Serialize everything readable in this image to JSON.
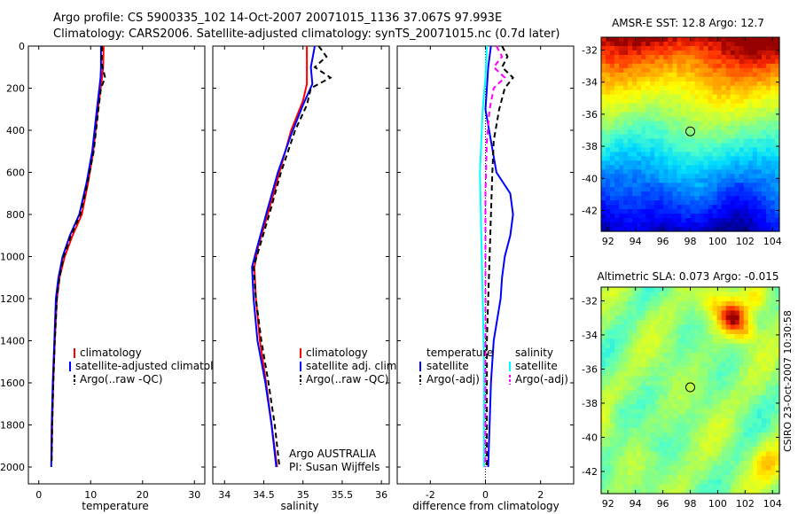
{
  "header": {
    "line1": "Argo profile: CS 5900335_102 14-Oct-2007 20071015_1136 37.067S 97.993E",
    "line2": "Climatology: CARS2006. Satellite-adjusted climatology: synTS_20071015.nc (0.7d later)"
  },
  "footer_credit": "CSIRO 23-Oct-2007 10:30:58",
  "colors": {
    "red": "#ff0000",
    "blue": "#0000ff",
    "black": "#000000",
    "cyan": "#00ffff",
    "magenta": "#ff00ff"
  },
  "chart_data": [
    {
      "type": "line",
      "id": "temperature",
      "xlabel": "temperature",
      "xlim": [
        -2,
        32
      ],
      "xticks": [
        0,
        10,
        20,
        30
      ],
      "ylim": [
        0,
        2080
      ],
      "yticks": [
        0,
        200,
        400,
        600,
        800,
        1000,
        1200,
        1400,
        1600,
        1800,
        2000
      ],
      "y_reversed": true,
      "legend": [
        "climatology",
        "satellite-adjusted climatology",
        "Argo(..raw -QC)"
      ],
      "series": [
        {
          "name": "climatology",
          "color": "red",
          "dash": false,
          "points": [
            [
              12.5,
              0
            ],
            [
              12.4,
              100
            ],
            [
              12.2,
              150
            ],
            [
              11.4,
              300
            ],
            [
              10.5,
              500
            ],
            [
              9.5,
              650
            ],
            [
              8.3,
              800
            ],
            [
              6.5,
              900
            ],
            [
              5.0,
              1000
            ],
            [
              4.0,
              1100
            ],
            [
              3.5,
              1200
            ],
            [
              3.1,
              1400
            ],
            [
              2.8,
              1600
            ],
            [
              2.6,
              1800
            ],
            [
              2.5,
              1950
            ]
          ]
        },
        {
          "name": "satellite-adjusted climatology",
          "color": "blue",
          "dash": false,
          "points": [
            [
              12.0,
              0
            ],
            [
              12.0,
              100
            ],
            [
              11.9,
              150
            ],
            [
              11.2,
              300
            ],
            [
              10.3,
              500
            ],
            [
              9.2,
              650
            ],
            [
              7.8,
              800
            ],
            [
              6.0,
              900
            ],
            [
              4.6,
              1000
            ],
            [
              3.8,
              1100
            ],
            [
              3.3,
              1200
            ],
            [
              3.0,
              1400
            ],
            [
              2.7,
              1600
            ],
            [
              2.5,
              1800
            ],
            [
              2.4,
              2000
            ]
          ]
        },
        {
          "name": "Argo(..raw -QC)",
          "color": "black",
          "dash": true,
          "points": [
            [
              12.2,
              0
            ],
            [
              12.1,
              80
            ],
            [
              12.8,
              150
            ],
            [
              12.0,
              200
            ],
            [
              11.5,
              300
            ],
            [
              10.6,
              500
            ],
            [
              9.4,
              650
            ],
            [
              8.0,
              800
            ],
            [
              6.2,
              900
            ],
            [
              4.8,
              1000
            ],
            [
              4.0,
              1100
            ],
            [
              3.5,
              1200
            ],
            [
              3.1,
              1400
            ],
            [
              2.8,
              1600
            ],
            [
              2.6,
              1800
            ],
            [
              2.5,
              1980
            ]
          ]
        }
      ]
    },
    {
      "type": "line",
      "id": "salinity",
      "xlabel": "salinity",
      "xlim": [
        33.85,
        36.1
      ],
      "xticks": [
        34,
        34.5,
        35,
        35.5,
        36
      ],
      "ylim": [
        0,
        2080
      ],
      "y_reversed": true,
      "legend": [
        "climatology",
        "satellite adj. clim.",
        "Argo(..raw -QC)"
      ],
      "annotation": [
        "Argo AUSTRALIA",
        "PI: Susan Wijffels"
      ],
      "series": [
        {
          "name": "climatology",
          "color": "red",
          "dash": false,
          "points": [
            [
              35.05,
              0
            ],
            [
              35.05,
              120
            ],
            [
              35.05,
              180
            ],
            [
              35.0,
              260
            ],
            [
              34.85,
              400
            ],
            [
              34.7,
              600
            ],
            [
              34.55,
              800
            ],
            [
              34.43,
              950
            ],
            [
              34.38,
              1050
            ],
            [
              34.4,
              1200
            ],
            [
              34.45,
              1400
            ],
            [
              34.53,
              1600
            ],
            [
              34.6,
              1800
            ],
            [
              34.67,
              2000
            ]
          ]
        },
        {
          "name": "satellite adj. clim.",
          "color": "blue",
          "dash": false,
          "points": [
            [
              35.15,
              0
            ],
            [
              35.1,
              100
            ],
            [
              35.12,
              180
            ],
            [
              35.0,
              280
            ],
            [
              34.85,
              420
            ],
            [
              34.68,
              600
            ],
            [
              34.53,
              800
            ],
            [
              34.42,
              950
            ],
            [
              34.35,
              1050
            ],
            [
              34.37,
              1200
            ],
            [
              34.42,
              1400
            ],
            [
              34.52,
              1600
            ],
            [
              34.6,
              1800
            ],
            [
              34.66,
              2000
            ]
          ]
        },
        {
          "name": "Argo(..raw -QC)",
          "color": "black",
          "dash": true,
          "points": [
            [
              35.2,
              0
            ],
            [
              35.3,
              50
            ],
            [
              35.15,
              100
            ],
            [
              35.35,
              150
            ],
            [
              35.1,
              200
            ],
            [
              35.05,
              280
            ],
            [
              34.9,
              400
            ],
            [
              34.72,
              600
            ],
            [
              34.57,
              800
            ],
            [
              34.45,
              950
            ],
            [
              34.37,
              1050
            ],
            [
              34.4,
              1200
            ],
            [
              34.47,
              1400
            ],
            [
              34.56,
              1600
            ],
            [
              34.64,
              1800
            ],
            [
              34.7,
              2000
            ]
          ]
        }
      ]
    },
    {
      "type": "line",
      "id": "difference",
      "xlabel": "difference from climatology",
      "xlim": [
        -3.2,
        3.2
      ],
      "xticks": [
        -2,
        0,
        2
      ],
      "ylim": [
        0,
        2080
      ],
      "y_reversed": true,
      "legend_temperature_heading": "temperature",
      "legend_salinity_heading": "salinity",
      "legend": [
        "satellite",
        "Argo(-adj)",
        "satellite",
        "Argo(-adj)"
      ],
      "series": [
        {
          "name": "temperature satellite",
          "color": "blue",
          "dash": false,
          "points": [
            [
              0.2,
              0
            ],
            [
              0.1,
              100
            ],
            [
              0.05,
              200
            ],
            [
              0.0,
              300
            ],
            [
              0.2,
              450
            ],
            [
              0.4,
              600
            ],
            [
              0.9,
              700
            ],
            [
              1.0,
              800
            ],
            [
              0.9,
              900
            ],
            [
              0.7,
              1000
            ],
            [
              0.6,
              1100
            ],
            [
              0.55,
              1200
            ],
            [
              0.3,
              1400
            ],
            [
              0.2,
              1600
            ],
            [
              0.15,
              1800
            ],
            [
              0.1,
              2000
            ]
          ]
        },
        {
          "name": "temperature Argo(-adj)",
          "color": "black",
          "dash": true,
          "points": [
            [
              0.6,
              0
            ],
            [
              0.8,
              50
            ],
            [
              0.6,
              100
            ],
            [
              1.0,
              150
            ],
            [
              0.7,
              200
            ],
            [
              0.5,
              300
            ],
            [
              0.3,
              450
            ],
            [
              0.25,
              600
            ],
            [
              0.2,
              800
            ],
            [
              0.15,
              1000
            ],
            [
              0.1,
              1200
            ],
            [
              0.05,
              1400
            ],
            [
              0.05,
              1600
            ],
            [
              0.05,
              1800
            ],
            [
              0.05,
              2000
            ]
          ]
        },
        {
          "name": "salinity satellite",
          "color": "cyan",
          "dash": false,
          "points": [
            [
              0.05,
              0
            ],
            [
              0.0,
              150
            ],
            [
              -0.1,
              300
            ],
            [
              -0.2,
              600
            ],
            [
              -0.15,
              900
            ],
            [
              -0.1,
              1200
            ],
            [
              -0.05,
              1500
            ],
            [
              -0.05,
              1800
            ],
            [
              -0.05,
              2000
            ]
          ]
        },
        {
          "name": "salinity Argo(-adj)",
          "color": "magenta",
          "dash": true,
          "points": [
            [
              0.4,
              0
            ],
            [
              0.6,
              50
            ],
            [
              0.3,
              100
            ],
            [
              0.7,
              150
            ],
            [
              0.3,
              200
            ],
            [
              0.15,
              300
            ],
            [
              0.05,
              450
            ],
            [
              0.0,
              700
            ],
            [
              0.0,
              1000
            ],
            [
              0.0,
              1300
            ],
            [
              0.0,
              1600
            ],
            [
              0.0,
              2000
            ]
          ]
        }
      ]
    },
    {
      "type": "heatmap",
      "id": "sst",
      "title": "AMSR-E SST: 12.8 Argo: 12.7",
      "xlim": [
        91.5,
        104.5
      ],
      "xticks": [
        92,
        94,
        96,
        98,
        100,
        102,
        104
      ],
      "ylim": [
        -43.3,
        -31.2
      ],
      "yticks": [
        -32,
        -34,
        -36,
        -38,
        -40,
        -42
      ],
      "marker": [
        98.0,
        -37.07
      ]
    },
    {
      "type": "heatmap",
      "id": "sla",
      "title": "Altimetric SLA: 0.073 Argo: -0.015",
      "xlim": [
        91.5,
        104.5
      ],
      "xticks": [
        92,
        94,
        96,
        98,
        100,
        102,
        104
      ],
      "ylim": [
        -43.3,
        -31.2
      ],
      "yticks": [
        -32,
        -34,
        -36,
        -38,
        -40,
        -42
      ],
      "marker": [
        98.0,
        -37.07
      ]
    }
  ]
}
